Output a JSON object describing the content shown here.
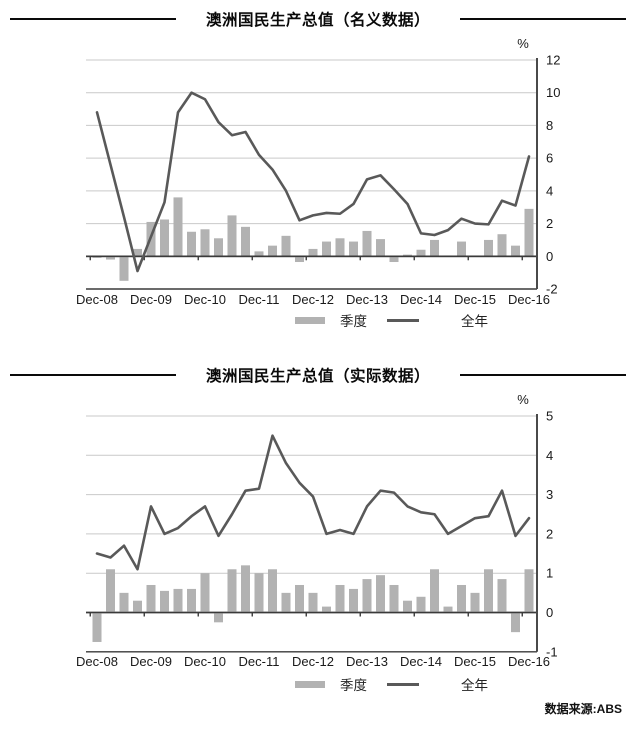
{
  "source_note": "数据来源:ABS",
  "colors": {
    "bar": "#b2b2b2",
    "line": "#595959",
    "grid": "#c9c9c9",
    "axis": "#3a3a3a"
  },
  "chart_data": [
    {
      "type": "combo_bar_line",
      "title": "澳洲国民生产总值（名义数据）",
      "unit_label": "%",
      "ylim": [
        -2,
        12
      ],
      "ytick_step": 2,
      "grid": true,
      "legend_position": "bottom",
      "categories": [
        "Dec-08",
        "Mar-09",
        "Jun-09",
        "Sep-09",
        "Dec-09",
        "Mar-10",
        "Jun-10",
        "Sep-10",
        "Dec-10",
        "Mar-11",
        "Jun-11",
        "Sep-11",
        "Dec-11",
        "Mar-12",
        "Jun-12",
        "Sep-12",
        "Dec-12",
        "Mar-13",
        "Jun-13",
        "Sep-13",
        "Dec-13",
        "Mar-14",
        "Jun-14",
        "Sep-14",
        "Dec-14",
        "Mar-15",
        "Jun-15",
        "Sep-15",
        "Dec-15",
        "Mar-16",
        "Jun-16",
        "Sep-16",
        "Dec-16"
      ],
      "x_tick_labels": [
        "Dec-08",
        "Dec-09",
        "Dec-10",
        "Dec-11",
        "Dec-12",
        "Dec-13",
        "Dec-14",
        "Dec-15",
        "Dec-16"
      ],
      "series": [
        {
          "name": "季度",
          "type": "bar",
          "values": [
            -0.1,
            -0.2,
            -1.5,
            0.45,
            2.1,
            2.25,
            3.6,
            1.5,
            1.65,
            1.1,
            2.5,
            1.8,
            0.3,
            0.65,
            1.25,
            -0.35,
            0.45,
            0.9,
            1.1,
            0.9,
            1.55,
            1.05,
            -0.35,
            0.1,
            0.4,
            1.0,
            0.05,
            0.9,
            0.05,
            1.0,
            1.35,
            0.65,
            2.9
          ]
        },
        {
          "name": "全年",
          "type": "line",
          "values": [
            8.8,
            5.6,
            2.4,
            -0.9,
            1.2,
            3.3,
            8.8,
            10.0,
            9.6,
            8.2,
            7.4,
            7.6,
            6.2,
            5.3,
            4.0,
            2.2,
            2.5,
            2.65,
            2.6,
            3.2,
            4.7,
            4.95,
            4.1,
            3.2,
            1.4,
            1.3,
            1.6,
            2.3,
            2.0,
            1.95,
            3.4,
            3.1,
            6.1
          ]
        }
      ]
    },
    {
      "type": "combo_bar_line",
      "title": "澳洲国民生产总值（实际数据）",
      "unit_label": "%",
      "ylim": [
        -1,
        5
      ],
      "ytick_step": 1,
      "grid": true,
      "legend_position": "bottom",
      "categories": [
        "Dec-08",
        "Mar-09",
        "Jun-09",
        "Sep-09",
        "Dec-09",
        "Mar-10",
        "Jun-10",
        "Sep-10",
        "Dec-10",
        "Mar-11",
        "Jun-11",
        "Sep-11",
        "Dec-11",
        "Mar-12",
        "Jun-12",
        "Sep-12",
        "Dec-12",
        "Mar-13",
        "Jun-13",
        "Sep-13",
        "Dec-13",
        "Mar-14",
        "Jun-14",
        "Sep-14",
        "Dec-14",
        "Mar-15",
        "Jun-15",
        "Sep-15",
        "Dec-15",
        "Mar-16",
        "Jun-16",
        "Sep-16",
        "Dec-16"
      ],
      "x_tick_labels": [
        "Dec-08",
        "Dec-09",
        "Dec-10",
        "Dec-11",
        "Dec-12",
        "Dec-13",
        "Dec-14",
        "Dec-15",
        "Dec-16"
      ],
      "series": [
        {
          "name": "季度",
          "type": "bar",
          "values": [
            -0.75,
            1.1,
            0.5,
            0.3,
            0.7,
            0.55,
            0.6,
            0.6,
            1.0,
            -0.25,
            1.1,
            1.2,
            1.0,
            1.1,
            0.5,
            0.7,
            0.5,
            0.15,
            0.7,
            0.6,
            0.85,
            0.95,
            0.7,
            0.3,
            0.4,
            1.1,
            0.15,
            0.7,
            0.5,
            1.1,
            0.85,
            -0.5,
            1.1
          ]
        },
        {
          "name": "全年",
          "type": "line",
          "values": [
            1.5,
            1.4,
            1.7,
            1.1,
            2.7,
            2.0,
            2.15,
            2.45,
            2.7,
            1.95,
            2.5,
            3.1,
            3.15,
            4.5,
            3.8,
            3.3,
            2.95,
            2.0,
            2.1,
            2.0,
            2.7,
            3.1,
            3.05,
            2.7,
            2.55,
            2.5,
            2.0,
            2.2,
            2.4,
            2.45,
            3.1,
            1.95,
            2.4
          ]
        }
      ]
    }
  ]
}
